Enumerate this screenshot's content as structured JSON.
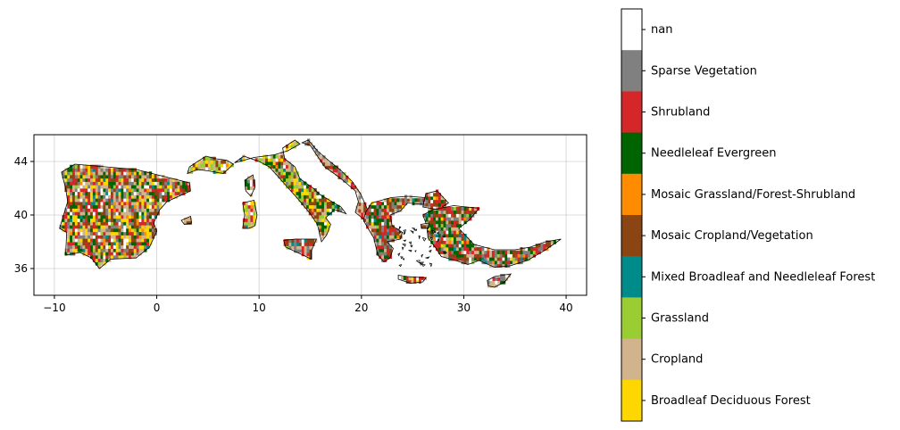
{
  "map": {
    "x_ticks": [
      "−10",
      "0",
      "10",
      "20",
      "30",
      "40"
    ],
    "y_ticks": [
      "36",
      "40",
      "44"
    ],
    "xlim": [
      -12,
      42
    ],
    "ylim": [
      34,
      46
    ],
    "grid": true,
    "region": "Mediterranean basin (Iberia, Italy, Balkans, Greece, Anatolia)"
  },
  "colorbar": {
    "categories": [
      {
        "label": "nan",
        "color": "#ffffff"
      },
      {
        "label": "Sparse Vegetation",
        "color": "#808080"
      },
      {
        "label": "Shrubland",
        "color": "#d62728"
      },
      {
        "label": "Needleleaf Evergreen",
        "color": "#006400"
      },
      {
        "label": "Mosaic Grassland/Forest-Shrubland",
        "color": "#ff8c00"
      },
      {
        "label": "Mosaic Cropland/Vegetation",
        "color": "#8b4513"
      },
      {
        "label": "Mixed Broadleaf and Needleleaf Forest",
        "color": "#008b8b"
      },
      {
        "label": "Grassland",
        "color": "#9acd32"
      },
      {
        "label": "Cropland",
        "color": "#d2b48c"
      },
      {
        "label": "Broadleaf Deciduous Forest",
        "color": "#ffd700"
      }
    ]
  }
}
